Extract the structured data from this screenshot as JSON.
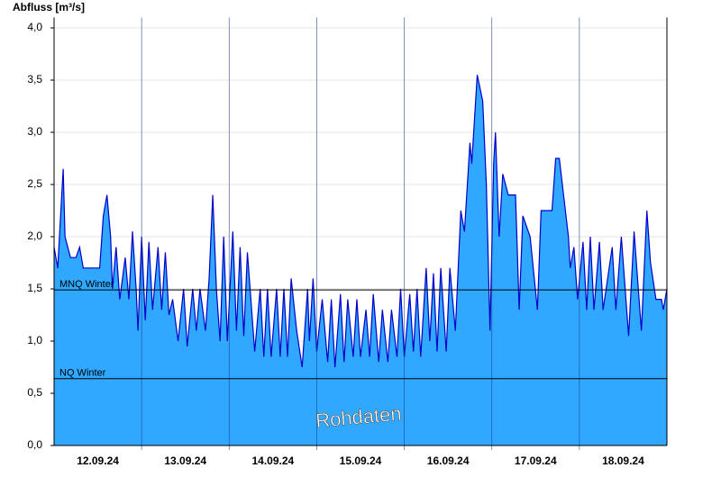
{
  "chart_data": {
    "type": "area",
    "y_label": "Abfluss [m³/s]",
    "watermark": "Rohdaten",
    "color": "#30a8ff",
    "line_color": "#0000c8",
    "xlim": [
      0,
      168
    ],
    "xticks": [
      {
        "value": 12,
        "label": "12.09.24"
      },
      {
        "value": 36,
        "label": "13.09.24"
      },
      {
        "value": 60,
        "label": "14.09.24"
      },
      {
        "value": 84,
        "label": "15.09.24"
      },
      {
        "value": 108,
        "label": "16.09.24"
      },
      {
        "value": 132,
        "label": "17.09.24"
      },
      {
        "value": 156,
        "label": "18.09.24"
      }
    ],
    "ylim": [
      0,
      4.1
    ],
    "yticks": [
      {
        "value": 0,
        "label": "0,0"
      },
      {
        "value": 0.5,
        "label": "0,5"
      },
      {
        "value": 1,
        "label": "1,0"
      },
      {
        "value": 1.5,
        "label": "1,5"
      },
      {
        "value": 2,
        "label": "2,0"
      },
      {
        "value": 2.5,
        "label": "2,5"
      },
      {
        "value": 3,
        "label": "3,0"
      },
      {
        "value": 3.5,
        "label": "3,5"
      },
      {
        "value": 4,
        "label": "4,0"
      }
    ],
    "grid": true,
    "reference_lines": [
      {
        "value": 1.49,
        "label": "MNQ Winter"
      },
      {
        "value": 0.64,
        "label": "NQ Winter"
      }
    ],
    "x": [
      0,
      1,
      2.5,
      3,
      4.5,
      6,
      7,
      8,
      12.5,
      13.5,
      14.5,
      15.5,
      16,
      17,
      18,
      19.5,
      20.5,
      21.5,
      22.5,
      23,
      24,
      25,
      26,
      27,
      28.5,
      29.5,
      30.5,
      31.5,
      32.5,
      34,
      35.5,
      36.5,
      38,
      39,
      40,
      41.5,
      42.5,
      43.5,
      44.5,
      45.5,
      46.5,
      47.5,
      49,
      50,
      51,
      52,
      53,
      55,
      56.5,
      57.5,
      58.5,
      59.5,
      61,
      62,
      63,
      64,
      65,
      66.5,
      68,
      69.5,
      70,
      71,
      72,
      73.5,
      75,
      76,
      77,
      78.5,
      79.5,
      80.5,
      82,
      83,
      84,
      85.5,
      86.5,
      87.5,
      89,
      90,
      91.5,
      92.5,
      94,
      95,
      96,
      97.5,
      98.5,
      99.5,
      100.5,
      102,
      103,
      104,
      105,
      106,
      107.5,
      108.5,
      110,
      111.5,
      112.5,
      114,
      114.5,
      116,
      117.5,
      118.5,
      119.5,
      120.5,
      121,
      122,
      123,
      124.5,
      126.5,
      127.5,
      128.5,
      130.5,
      132.5,
      133.5,
      136.5,
      137.5,
      138.5,
      140,
      141,
      141.5,
      142.5,
      143.5,
      145,
      146,
      147,
      148,
      149.5,
      150.5,
      153,
      154,
      155.5,
      157.5,
      159,
      161,
      162.5,
      163.5,
      165,
      166.5,
      167,
      168
    ],
    "values": [
      1.9,
      1.7,
      2.65,
      2.0,
      1.8,
      1.8,
      1.9,
      1.7,
      1.7,
      2.2,
      2.4,
      2.0,
      1.5,
      1.9,
      1.4,
      1.8,
      1.4,
      2.05,
      1.5,
      1.1,
      2.0,
      1.2,
      1.95,
      1.3,
      1.9,
      1.3,
      1.85,
      1.25,
      1.4,
      1.0,
      1.5,
      0.95,
      1.5,
      1.1,
      1.5,
      1.1,
      1.6,
      2.4,
      1.5,
      1.0,
      2.0,
      1.0,
      2.05,
      1.1,
      1.9,
      1.05,
      1.85,
      0.9,
      1.5,
      0.85,
      1.5,
      0.85,
      1.5,
      0.85,
      1.5,
      0.85,
      1.6,
      1.1,
      0.75,
      1.5,
      1.0,
      1.6,
      0.9,
      1.4,
      0.8,
      1.4,
      0.75,
      1.45,
      0.8,
      1.4,
      0.85,
      1.4,
      0.85,
      1.3,
      0.85,
      1.45,
      0.8,
      1.3,
      0.8,
      1.3,
      0.85,
      1.5,
      0.85,
      1.45,
      0.9,
      1.5,
      0.85,
      1.7,
      1.0,
      1.65,
      0.9,
      1.7,
      0.9,
      1.7,
      1.1,
      2.25,
      2.05,
      2.9,
      2.7,
      3.55,
      3.3,
      2.5,
      1.1,
      2.7,
      3.0,
      2.0,
      2.6,
      2.4,
      2.4,
      1.3,
      2.2,
      2.0,
      1.3,
      2.25,
      2.25,
      2.75,
      2.75,
      2.3,
      2.0,
      1.7,
      1.9,
      1.4,
      1.95,
      1.3,
      2.0,
      1.3,
      1.95,
      1.3,
      1.9,
      1.3,
      2.0,
      1.05,
      2.05,
      1.1,
      2.25,
      1.75,
      1.4,
      1.4,
      1.3,
      1.5
    ]
  }
}
